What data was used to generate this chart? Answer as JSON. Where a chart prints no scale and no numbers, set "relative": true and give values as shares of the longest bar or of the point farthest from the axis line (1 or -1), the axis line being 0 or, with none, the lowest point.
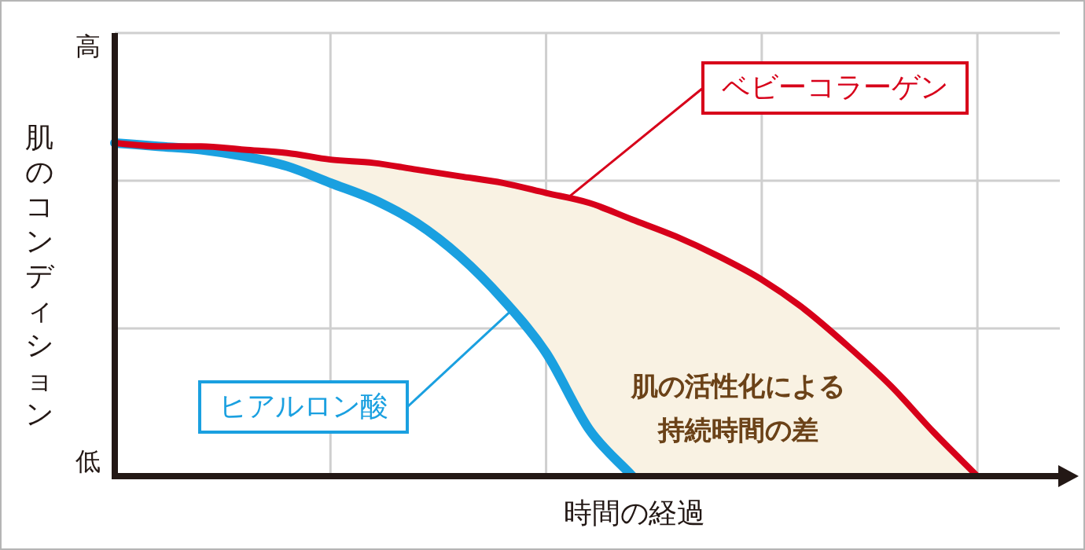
{
  "chart_data": {
    "type": "line",
    "relative": true,
    "ylabel": "肌のコンディション",
    "xlabel": "時間の経過",
    "grid": true,
    "legend": false,
    "marker": "none",
    "line_style": "solid",
    "categories": [
      null,
      null,
      null,
      null,
      null,
      null,
      null,
      null,
      null,
      null,
      null,
      null,
      null,
      null,
      null,
      null,
      null,
      null,
      null,
      null,
      null,
      null
    ],
    "series": [
      {
        "name": "ベビーコラーゲン",
        "color": "#d7001a",
        "values": [
          1,
          0.99,
          0.99,
          0.98,
          0.97,
          0.95,
          0.94,
          0.92,
          0.9,
          0.88,
          0.85,
          0.82,
          0.77,
          0.72,
          0.66,
          0.59,
          0.5,
          0.39,
          0.27,
          0.13,
          0,
          null
        ]
      },
      {
        "name": "ヒアルロン酸",
        "color": "#1aa0e0",
        "values": [
          1,
          0.99,
          0.98,
          0.96,
          0.93,
          0.88,
          0.83,
          0.76,
          0.66,
          0.53,
          0.37,
          0.14,
          0,
          null,
          null,
          null,
          null,
          null,
          null,
          null,
          null,
          null
        ]
      }
    ],
    "annotations": [
      "高",
      "低",
      "肌の活性化による",
      "持続時間の差"
    ]
  }
}
